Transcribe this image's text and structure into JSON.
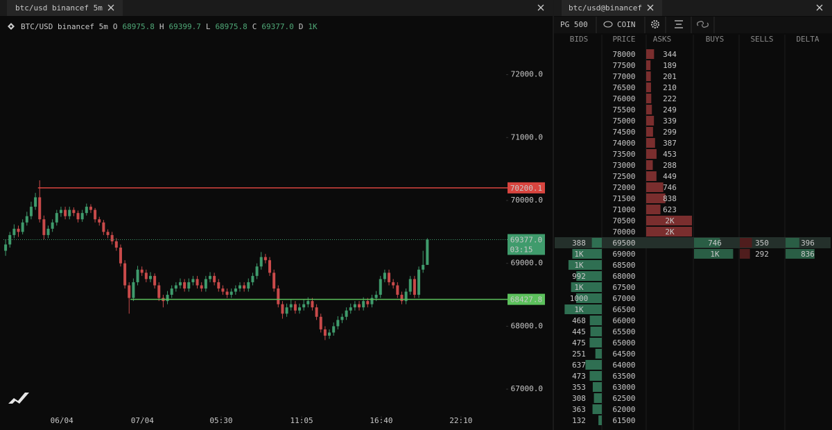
{
  "left_panel": {
    "tab": "btc/usd binancef 5m"
  },
  "chart_data": {
    "type": "candlestick",
    "symbol": "BTC/USD binancef 5m",
    "legend": [
      {
        "label": "O",
        "value": 68975.8
      },
      {
        "label": "H",
        "value": 69399.7
      },
      {
        "label": "L",
        "value": 68975.8
      },
      {
        "label": "C",
        "value": 69377,
        "value_label": "69377.0"
      },
      {
        "label": "D",
        "value": 1000,
        "value_label": "1K"
      }
    ],
    "ylim": [
      66571,
      72933
    ],
    "yticks": [
      {
        "value": 67000,
        "label": "67000.0"
      },
      {
        "value": 68000,
        "label": "68000.0"
      },
      {
        "value": 69000,
        "label": "69000.0"
      },
      {
        "value": 70000,
        "label": "70000.0"
      },
      {
        "value": 71000,
        "label": "71000.0"
      },
      {
        "value": 72000,
        "label": "72000.0"
      }
    ],
    "xlim": [
      0,
      118
    ],
    "xticks": [
      {
        "value": 13.7,
        "label": "06/04"
      },
      {
        "value": 32.6,
        "label": "07/04"
      },
      {
        "value": 51.1,
        "label": "05:30"
      },
      {
        "value": 70,
        "label": "11:05"
      },
      {
        "value": 88.7,
        "label": "16:40"
      },
      {
        "value": 107.4,
        "label": "22:10"
      }
    ],
    "up_color": "#3f9b6c",
    "down_color": "#c94a4a",
    "candles": [
      [
        69200,
        69380,
        69120,
        69300
      ],
      [
        69300,
        69500,
        69250,
        69450
      ],
      [
        69450,
        69620,
        69400,
        69550
      ],
      [
        69550,
        69600,
        69420,
        69500
      ],
      [
        69500,
        69700,
        69460,
        69650
      ],
      [
        69650,
        69820,
        69600,
        69750
      ],
      [
        69750,
        69980,
        69700,
        69900
      ],
      [
        69900,
        70120,
        69850,
        70050
      ],
      [
        70050,
        70320,
        69650,
        69700
      ],
      [
        69700,
        69760,
        69380,
        69450
      ],
      [
        69450,
        69600,
        69400,
        69550
      ],
      [
        69550,
        69700,
        69500,
        69650
      ],
      [
        69650,
        69850,
        69600,
        69800
      ],
      [
        69800,
        69900,
        69740,
        69850
      ],
      [
        69850,
        69900,
        69700,
        69750
      ],
      [
        69750,
        69900,
        69700,
        69850
      ],
      [
        69850,
        69890,
        69750,
        69800
      ],
      [
        69800,
        69840,
        69650,
        69700
      ],
      [
        69700,
        69850,
        69660,
        69800
      ],
      [
        69800,
        69950,
        69760,
        69900
      ],
      [
        69900,
        69940,
        69800,
        69850
      ],
      [
        69850,
        69880,
        69650,
        69700
      ],
      [
        69700,
        69740,
        69600,
        69650
      ],
      [
        69650,
        69690,
        69450,
        69500
      ],
      [
        69500,
        69540,
        69400,
        69450
      ],
      [
        69450,
        69500,
        69300,
        69350
      ],
      [
        69350,
        69400,
        69200,
        69250
      ],
      [
        69250,
        69300,
        68950,
        69000
      ],
      [
        69000,
        69050,
        68600,
        68650
      ],
      [
        68650,
        68700,
        68200,
        68450
      ],
      [
        68450,
        68760,
        68400,
        68700
      ],
      [
        68700,
        68960,
        68650,
        68900
      ],
      [
        68900,
        68950,
        68800,
        68850
      ],
      [
        68850,
        68900,
        68700,
        68750
      ],
      [
        68750,
        68860,
        68700,
        68800
      ],
      [
        68800,
        68840,
        68600,
        68650
      ],
      [
        68650,
        68700,
        68400,
        68450
      ],
      [
        68450,
        68500,
        68300,
        68400
      ],
      [
        68400,
        68560,
        68350,
        68500
      ],
      [
        68500,
        68650,
        68450,
        68600
      ],
      [
        68600,
        68700,
        68550,
        68650
      ],
      [
        68650,
        68760,
        68600,
        68700
      ],
      [
        68700,
        68750,
        68550,
        68600
      ],
      [
        68600,
        68760,
        68550,
        68700
      ],
      [
        68700,
        68800,
        68650,
        68750
      ],
      [
        68750,
        68800,
        68600,
        68650
      ],
      [
        68650,
        68700,
        68550,
        68600
      ],
      [
        68600,
        68800,
        68550,
        68750
      ],
      [
        68750,
        68860,
        68700,
        68800
      ],
      [
        68800,
        68850,
        68650,
        68700
      ],
      [
        68700,
        68750,
        68550,
        68600
      ],
      [
        68600,
        68650,
        68500,
        68550
      ],
      [
        68550,
        68600,
        68450,
        68500
      ],
      [
        68500,
        68600,
        68450,
        68550
      ],
      [
        68550,
        68650,
        68500,
        68600
      ],
      [
        68600,
        68700,
        68550,
        68650
      ],
      [
        68650,
        68700,
        68550,
        68600
      ],
      [
        68600,
        68760,
        68550,
        68700
      ],
      [
        68700,
        68850,
        68650,
        68800
      ],
      [
        68800,
        69000,
        68750,
        68950
      ],
      [
        68950,
        69180,
        68900,
        69100
      ],
      [
        69100,
        69150,
        69000,
        69050
      ],
      [
        69050,
        69100,
        68800,
        68850
      ],
      [
        68850,
        68900,
        68550,
        68600
      ],
      [
        68600,
        68650,
        68300,
        68350
      ],
      [
        68350,
        68400,
        68120,
        68200
      ],
      [
        68200,
        68360,
        68150,
        68300
      ],
      [
        68300,
        68420,
        68250,
        68350
      ],
      [
        68350,
        68400,
        68200,
        68250
      ],
      [
        68250,
        68360,
        68200,
        68300
      ],
      [
        68300,
        68420,
        68250,
        68350
      ],
      [
        68350,
        68460,
        68300,
        68400
      ],
      [
        68400,
        68450,
        68250,
        68300
      ],
      [
        68300,
        68350,
        68100,
        68150
      ],
      [
        68150,
        68200,
        67900,
        67950
      ],
      [
        67950,
        68000,
        67780,
        67850
      ],
      [
        67850,
        67950,
        67800,
        67900
      ],
      [
        67900,
        68060,
        67850,
        68000
      ],
      [
        68000,
        68160,
        67950,
        68100
      ],
      [
        68100,
        68200,
        68050,
        68150
      ],
      [
        68150,
        68300,
        68100,
        68250
      ],
      [
        68250,
        68360,
        68200,
        68300
      ],
      [
        68300,
        68400,
        68250,
        68350
      ],
      [
        68350,
        68400,
        68250,
        68300
      ],
      [
        68300,
        68460,
        68250,
        68400
      ],
      [
        68400,
        68450,
        68300,
        68350
      ],
      [
        68350,
        68500,
        68300,
        68450
      ],
      [
        68450,
        68560,
        68400,
        68500
      ],
      [
        68500,
        68800,
        68450,
        68750
      ],
      [
        68750,
        68900,
        68700,
        68850
      ],
      [
        68850,
        68900,
        68650,
        68700
      ],
      [
        68700,
        68750,
        68600,
        68650
      ],
      [
        68650,
        68700,
        68450,
        68500
      ],
      [
        68500,
        68550,
        68350,
        68400
      ],
      [
        68400,
        68600,
        68350,
        68550
      ],
      [
        68550,
        68800,
        68500,
        68750
      ],
      [
        68750,
        68800,
        68450,
        68500
      ],
      [
        68500,
        68950,
        68450,
        68900
      ],
      [
        68900,
        69200,
        68850,
        68975.8
      ],
      [
        68975.8,
        69399.7,
        68975.8,
        69377
      ]
    ],
    "levels": [
      {
        "value": 70200.1,
        "color": "#d9453f",
        "start": 8.1
      },
      {
        "value": 68427.8,
        "color": "#5cc15c",
        "start": 29.8
      }
    ],
    "last": {
      "value": 69377,
      "label": "69377.0",
      "countdown": "03:15",
      "color": "#3f9b6c"
    }
  },
  "right_panel": {
    "tab": "btc/usd@binancef",
    "toolbar": {
      "group": "PG 500",
      "unit": "COIN"
    },
    "columns": [
      "BIDS",
      "PRICE",
      "ASKS",
      "BUYS",
      "SELLS",
      "DELTA"
    ],
    "bid_color": "#2f6f52",
    "ask_color": "#7a2e2e",
    "buy_color": "#2a5e45",
    "sell_color": "#4f1d1d",
    "rows": [
      {
        "price": 78000,
        "ask": 344
      },
      {
        "price": 77500,
        "ask": 189
      },
      {
        "price": 77000,
        "ask": 201
      },
      {
        "price": 76500,
        "ask": 210
      },
      {
        "price": 76000,
        "ask": 222
      },
      {
        "price": 75500,
        "ask": 249
      },
      {
        "price": 75000,
        "ask": 339
      },
      {
        "price": 74500,
        "ask": 299
      },
      {
        "price": 74000,
        "ask": 387
      },
      {
        "price": 73500,
        "ask": 453
      },
      {
        "price": 73000,
        "ask": 288
      },
      {
        "price": 72500,
        "ask": 449
      },
      {
        "price": 72000,
        "ask": 746
      },
      {
        "price": 71500,
        "ask": 838
      },
      {
        "price": 71000,
        "ask": 623
      },
      {
        "price": 70500,
        "ask": 2000,
        "ask_label": "2K"
      },
      {
        "price": 70000,
        "ask": 2000,
        "ask_label": "2K"
      },
      {
        "price": 69500,
        "bid": 388,
        "buy": 746,
        "sell": 350,
        "delta": 396,
        "highlight": true
      },
      {
        "price": 69000,
        "bid": 1150,
        "bid_label": "1K",
        "buy": 1128,
        "buy_label": "1K",
        "sell": 292,
        "delta": 836
      },
      {
        "price": 68500,
        "bid": 1300,
        "bid_label": "1K"
      },
      {
        "price": 68000,
        "bid": 992
      },
      {
        "price": 67500,
        "bid": 1200,
        "bid_label": "1K"
      },
      {
        "price": 67000,
        "bid": 1000
      },
      {
        "price": 66500,
        "bid": 1450,
        "bid_label": "1K"
      },
      {
        "price": 66000,
        "bid": 468
      },
      {
        "price": 65500,
        "bid": 445
      },
      {
        "price": 65000,
        "bid": 475
      },
      {
        "price": 64500,
        "bid": 251
      },
      {
        "price": 64000,
        "bid": 637
      },
      {
        "price": 63500,
        "bid": 473
      },
      {
        "price": 63000,
        "bid": 353
      },
      {
        "price": 62500,
        "bid": 308
      },
      {
        "price": 62000,
        "bid": 363
      },
      {
        "price": 61500,
        "bid": 132
      }
    ]
  }
}
